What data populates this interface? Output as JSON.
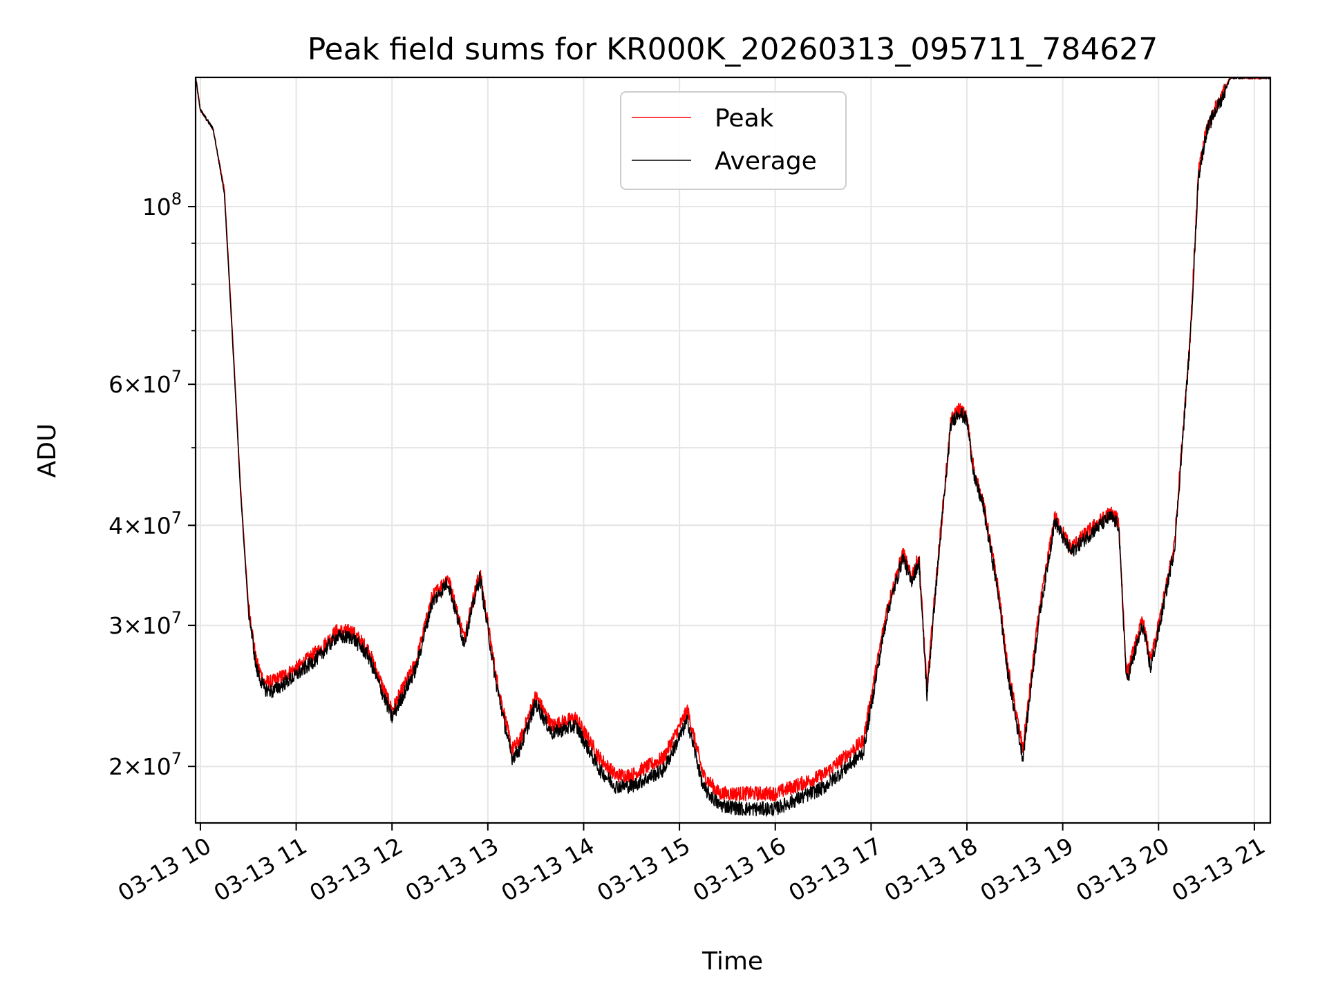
{
  "chart_data": {
    "type": "line",
    "title": "Peak field sums for KR000K_20260313_095711_784627",
    "xlabel": "Time",
    "ylabel": "ADU",
    "yscale": "log",
    "grid": true,
    "legend_position": "upper center",
    "xlim": [
      "2026-03-13 09:57",
      "2026-03-13 21:10"
    ],
    "ylim": [
      17000000,
      145000000
    ],
    "x_ticks": [
      "03-13 10",
      "03-13 11",
      "03-13 12",
      "03-13 13",
      "03-13 14",
      "03-13 15",
      "03-13 16",
      "03-13 17",
      "03-13 18",
      "03-13 19",
      "03-13 20",
      "03-13 21"
    ],
    "y_ticks": [
      {
        "value": 20000000,
        "coef": "2",
        "exp": "7"
      },
      {
        "value": 30000000,
        "coef": "3",
        "exp": "7"
      },
      {
        "value": 40000000,
        "coef": "4",
        "exp": "7"
      },
      {
        "value": 60000000,
        "coef": "6",
        "exp": "7"
      },
      {
        "value": 100000000,
        "coef": "",
        "exp": "8"
      }
    ],
    "series": [
      {
        "name": "Peak",
        "color": "#ff0000",
        "x": [
          "2026-03-13 09:57",
          "2026-03-13 10:00",
          "2026-03-13 10:08",
          "2026-03-13 10:15",
          "2026-03-13 10:20",
          "2026-03-13 10:25",
          "2026-03-13 10:30",
          "2026-03-13 10:35",
          "2026-03-13 10:40",
          "2026-03-13 10:45",
          "2026-03-13 11:00",
          "2026-03-13 11:15",
          "2026-03-13 11:25",
          "2026-03-13 11:35",
          "2026-03-13 11:45",
          "2026-03-13 12:00",
          "2026-03-13 12:15",
          "2026-03-13 12:25",
          "2026-03-13 12:35",
          "2026-03-13 12:45",
          "2026-03-13 12:55",
          "2026-03-13 13:05",
          "2026-03-13 13:15",
          "2026-03-13 13:20",
          "2026-03-13 13:30",
          "2026-03-13 13:40",
          "2026-03-13 13:55",
          "2026-03-13 14:10",
          "2026-03-13 14:20",
          "2026-03-13 14:30",
          "2026-03-13 14:50",
          "2026-03-13 15:05",
          "2026-03-13 15:15",
          "2026-03-13 15:25",
          "2026-03-13 15:40",
          "2026-03-13 16:00",
          "2026-03-13 16:30",
          "2026-03-13 16:55",
          "2026-03-13 17:10",
          "2026-03-13 17:20",
          "2026-03-13 17:25",
          "2026-03-13 17:30",
          "2026-03-13 17:35",
          "2026-03-13 17:40",
          "2026-03-13 17:50",
          "2026-03-13 17:55",
          "2026-03-13 18:00",
          "2026-03-13 18:05",
          "2026-03-13 18:10",
          "2026-03-13 18:20",
          "2026-03-13 18:25",
          "2026-03-13 18:35",
          "2026-03-13 18:45",
          "2026-03-13 18:55",
          "2026-03-13 19:05",
          "2026-03-13 19:20",
          "2026-03-13 19:30",
          "2026-03-13 19:35",
          "2026-03-13 19:40",
          "2026-03-13 19:50",
          "2026-03-13 19:55",
          "2026-03-13 20:00",
          "2026-03-13 20:10",
          "2026-03-13 20:20",
          "2026-03-13 20:25",
          "2026-03-13 20:30",
          "2026-03-13 20:35",
          "2026-03-13 20:40",
          "2026-03-13 20:45",
          "2026-03-13 20:50",
          "2026-03-13 20:55",
          "2026-03-13 21:00",
          "2026-03-13 21:10"
        ],
        "values": [
          145000000,
          132000000,
          125000000,
          105000000,
          70000000,
          45000000,
          32000000,
          27000000,
          25500000,
          25500000,
          26500000,
          28000000,
          29500000,
          29500000,
          28000000,
          23500000,
          27000000,
          32500000,
          34500000,
          29000000,
          35000000,
          26000000,
          21000000,
          21500000,
          24500000,
          22500000,
          23000000,
          20500000,
          19500000,
          19500000,
          20500000,
          23500000,
          19500000,
          18500000,
          18500000,
          18500000,
          19500000,
          21500000,
          31500000,
          37000000,
          34500000,
          36500000,
          25000000,
          33000000,
          54000000,
          56000000,
          54500000,
          46000000,
          43000000,
          33000000,
          27000000,
          21000000,
          31000000,
          41000000,
          37500000,
          40000000,
          41500000,
          40500000,
          26000000,
          30500000,
          27000000,
          30000000,
          38000000,
          70000000,
          110000000,
          125000000,
          132000000,
          138000000,
          145000000,
          145000000,
          145000000,
          145000000,
          145000000
        ]
      },
      {
        "name": "Average",
        "color": "#000000",
        "x": [
          "2026-03-13 09:57",
          "2026-03-13 10:00",
          "2026-03-13 10:08",
          "2026-03-13 10:15",
          "2026-03-13 10:20",
          "2026-03-13 10:25",
          "2026-03-13 10:30",
          "2026-03-13 10:35",
          "2026-03-13 10:40",
          "2026-03-13 10:45",
          "2026-03-13 11:00",
          "2026-03-13 11:15",
          "2026-03-13 11:25",
          "2026-03-13 11:35",
          "2026-03-13 11:45",
          "2026-03-13 12:00",
          "2026-03-13 12:15",
          "2026-03-13 12:25",
          "2026-03-13 12:35",
          "2026-03-13 12:45",
          "2026-03-13 12:55",
          "2026-03-13 13:05",
          "2026-03-13 13:15",
          "2026-03-13 13:20",
          "2026-03-13 13:30",
          "2026-03-13 13:40",
          "2026-03-13 13:55",
          "2026-03-13 14:10",
          "2026-03-13 14:20",
          "2026-03-13 14:30",
          "2026-03-13 14:50",
          "2026-03-13 15:05",
          "2026-03-13 15:15",
          "2026-03-13 15:25",
          "2026-03-13 15:40",
          "2026-03-13 16:00",
          "2026-03-13 16:30",
          "2026-03-13 16:55",
          "2026-03-13 17:10",
          "2026-03-13 17:20",
          "2026-03-13 17:25",
          "2026-03-13 17:30",
          "2026-03-13 17:35",
          "2026-03-13 17:40",
          "2026-03-13 17:50",
          "2026-03-13 17:55",
          "2026-03-13 18:00",
          "2026-03-13 18:05",
          "2026-03-13 18:10",
          "2026-03-13 18:20",
          "2026-03-13 18:25",
          "2026-03-13 18:35",
          "2026-03-13 18:45",
          "2026-03-13 18:55",
          "2026-03-13 19:05",
          "2026-03-13 19:20",
          "2026-03-13 19:30",
          "2026-03-13 19:35",
          "2026-03-13 19:40",
          "2026-03-13 19:50",
          "2026-03-13 19:55",
          "2026-03-13 20:00",
          "2026-03-13 20:10",
          "2026-03-13 20:20",
          "2026-03-13 20:25",
          "2026-03-13 20:30",
          "2026-03-13 20:35",
          "2026-03-13 20:40",
          "2026-03-13 20:45",
          "2026-03-13 20:50",
          "2026-03-13 20:55",
          "2026-03-13 21:00",
          "2026-03-13 21:10"
        ],
        "values": [
          145000000,
          132000000,
          125000000,
          104000000,
          69000000,
          44500000,
          31500000,
          26500000,
          25000000,
          24800000,
          26000000,
          27500000,
          29000000,
          29000000,
          27500000,
          23000000,
          26500000,
          32000000,
          34000000,
          28500000,
          34500000,
          25500000,
          20500000,
          21000000,
          24000000,
          22000000,
          22500000,
          19800000,
          18900000,
          18900000,
          19800000,
          22800000,
          18800000,
          17900000,
          17700000,
          17700000,
          18800000,
          20800000,
          31000000,
          36500000,
          34000000,
          36000000,
          24500000,
          32500000,
          53500000,
          55500000,
          54000000,
          45500000,
          42500000,
          32500000,
          26500000,
          20500000,
          30500000,
          40500000,
          37000000,
          39500000,
          41000000,
          40000000,
          25500000,
          30000000,
          26500000,
          29500000,
          37500000,
          69000000,
          109000000,
          124000000,
          131000000,
          137000000,
          145000000,
          145000000,
          145000000,
          145000000,
          145000000
        ]
      }
    ]
  }
}
